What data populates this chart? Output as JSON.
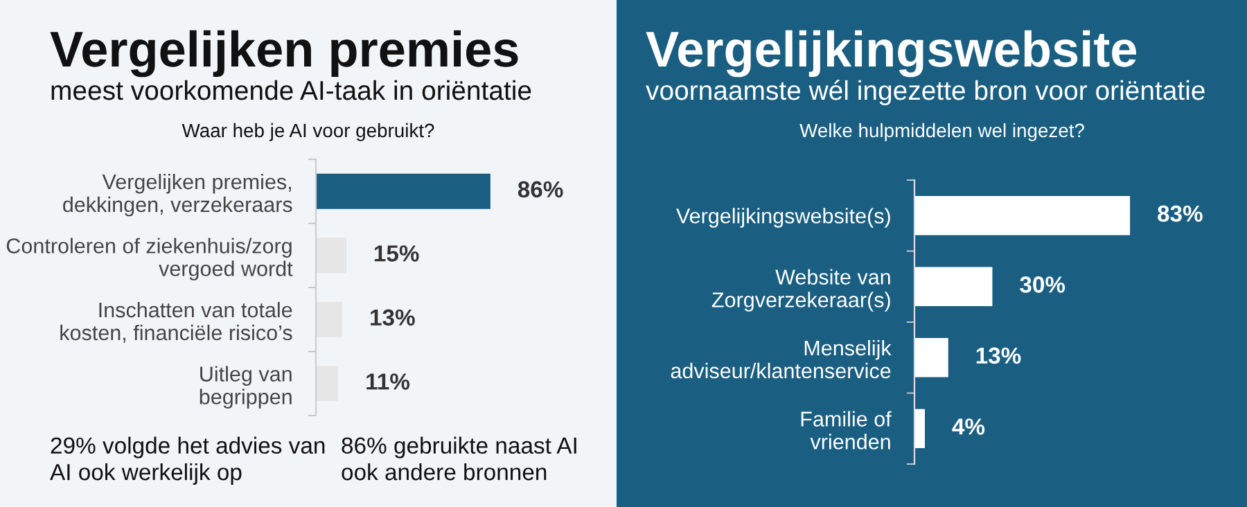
{
  "chart_data": [
    {
      "type": "bar",
      "orientation": "horizontal",
      "title": "Vergelijken premies",
      "subtitle": "meest voorkomende AI-taak in oriëntatie",
      "xlabel": "Waar heb je AI voor gebruikt?",
      "categories": [
        "Vergelijken premies,\ndekkingen, verzekeraars",
        "Controleren of ziekenhuis/zorg\nvergoed wordt",
        "Inschatten van totale\nkosten, financiële risico’s",
        "Uitleg van\nbegrippen"
      ],
      "values": [
        86,
        15,
        13,
        11
      ],
      "colors": [
        "#1a5f82",
        "#e6e6e6",
        "#e6e6e6",
        "#e6e6e6"
      ],
      "value_labels": [
        "86%",
        "15%",
        "13%",
        "11%"
      ],
      "annotations": [
        "29% volgde het advies van\nAI ook werkelijk op",
        "86% gebruikte naast AI\nook andere bronnen"
      ]
    },
    {
      "type": "bar",
      "orientation": "horizontal",
      "title": "Vergelijkingswebsite",
      "subtitle": "voornaamste wél ingezette bron voor oriëntatie",
      "xlabel": "Welke hulpmiddelen wel ingezet?",
      "categories": [
        "Vergelijkingswebsite(s)",
        "Website van\nZorgverzekeraar(s)",
        "Menselijk\nadviseur/klantenservice",
        "Familie of\nvrienden"
      ],
      "values": [
        83,
        30,
        13,
        4
      ],
      "colors": [
        "#ffffff",
        "#ffffff",
        "#ffffff",
        "#ffffff"
      ],
      "value_labels": [
        "83%",
        "30%",
        "13%",
        "4%"
      ]
    }
  ]
}
